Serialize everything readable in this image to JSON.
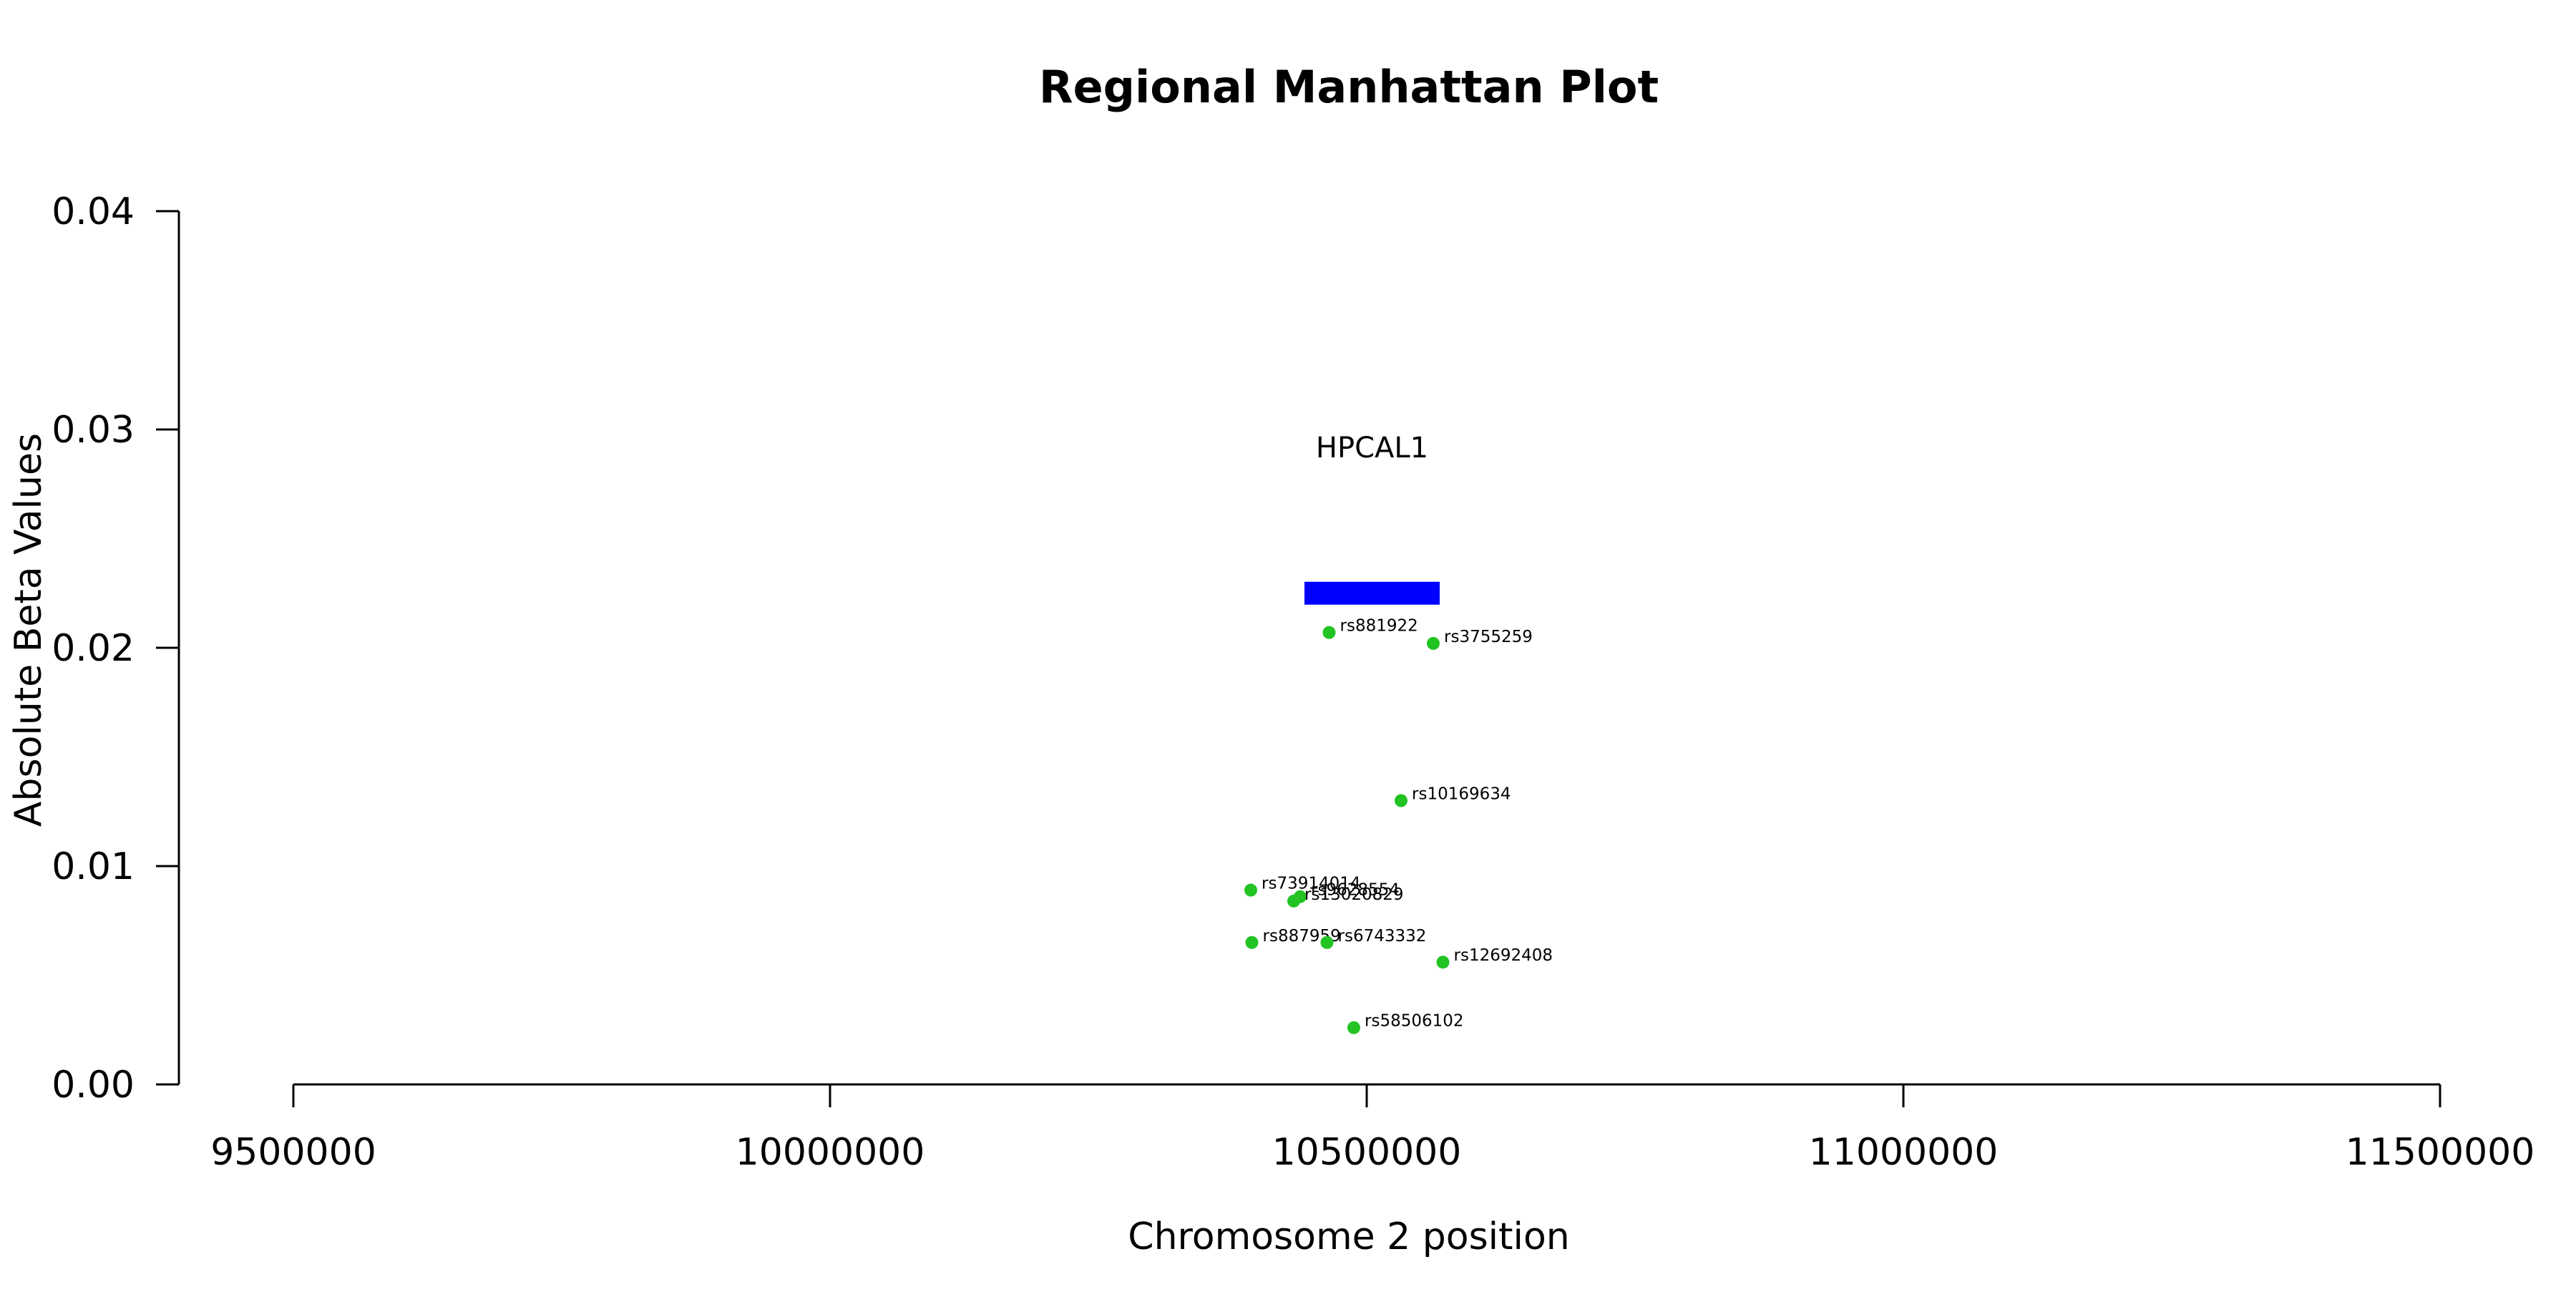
{
  "chart_data": {
    "type": "scatter",
    "title": "Regional Manhattan Plot",
    "xlabel": "Chromosome 2 position",
    "ylabel": "Absolute Beta Values",
    "xlim": [
      9500000,
      11500000
    ],
    "ylim": [
      0,
      0.04
    ],
    "x_ticks": [
      9500000,
      10000000,
      10500000,
      11000000,
      11500000
    ],
    "x_tick_labels": [
      "9500000",
      "10000000",
      "10500000",
      "11000000",
      "11500000"
    ],
    "y_ticks": [
      0,
      0.01,
      0.02,
      0.03,
      0.04
    ],
    "y_tick_labels": [
      "0.00",
      "0.01",
      "0.02",
      "0.03",
      "0.04"
    ],
    "grid": false,
    "points": [
      {
        "label": "rs881922",
        "x": 10465000,
        "y": 0.0207
      },
      {
        "label": "rs3755259",
        "x": 10562000,
        "y": 0.0202
      },
      {
        "label": "rs10169634",
        "x": 10532000,
        "y": 0.013
      },
      {
        "label": "rs73914014",
        "x": 10392000,
        "y": 0.0089
      },
      {
        "label": "rs9628554",
        "x": 10438000,
        "y": 0.0086
      },
      {
        "label": "rs13020829",
        "x": 10432000,
        "y": 0.0084
      },
      {
        "label": "rs887959",
        "x": 10393000,
        "y": 0.0065
      },
      {
        "label": "rs6743332",
        "x": 10463000,
        "y": 0.0065
      },
      {
        "label": "rs12692408",
        "x": 10571000,
        "y": 0.0056
      },
      {
        "label": "rs58506102",
        "x": 10488000,
        "y": 0.0026
      }
    ],
    "genes": [
      {
        "name": "HPCAL1",
        "start": 10442000,
        "end": 10568000,
        "y": 0.0225
      }
    ],
    "colors": {
      "points": "#22c322",
      "gene_bar": "#0000ff",
      "axis": "#000000"
    }
  }
}
